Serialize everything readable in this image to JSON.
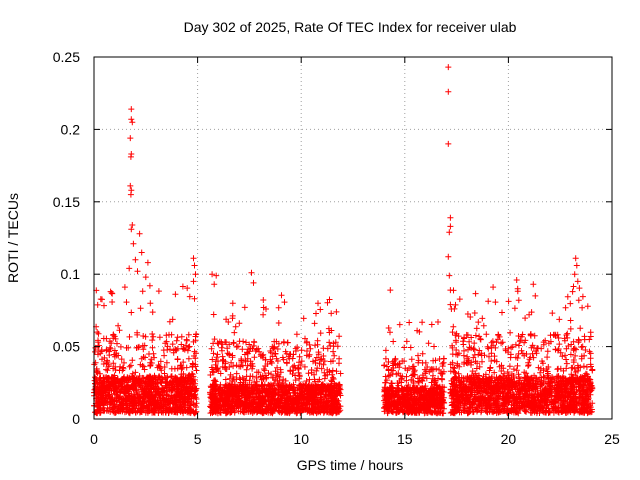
{
  "chart_data": {
    "type": "scatter",
    "title": "Day 302 of 2025, Rate Of TEC Index for receiver ulab",
    "xlabel": "GPS time / hours",
    "ylabel": "ROTI / TECUs",
    "xlim": [
      0,
      25
    ],
    "ylim": [
      0,
      0.25
    ],
    "x_ticks": [
      0,
      5,
      10,
      15,
      20,
      25
    ],
    "y_ticks": [
      0,
      0.05,
      0.1,
      0.15,
      0.2,
      0.25
    ],
    "x_tick_labels": [
      "0",
      "5",
      "10",
      "15",
      "20",
      "25"
    ],
    "y_tick_labels": [
      "0",
      "0.05",
      "0.1",
      "0.15",
      "0.2",
      "0.25"
    ],
    "grid": true,
    "marker": "plus",
    "color": "#ff0000",
    "outliers": [
      {
        "x": 1.8,
        "y": 0.214
      },
      {
        "x": 1.8,
        "y": 0.207
      },
      {
        "x": 1.85,
        "y": 0.205
      },
      {
        "x": 1.75,
        "y": 0.194
      },
      {
        "x": 1.8,
        "y": 0.183
      },
      {
        "x": 1.78,
        "y": 0.181
      },
      {
        "x": 1.75,
        "y": 0.161
      },
      {
        "x": 1.8,
        "y": 0.158
      },
      {
        "x": 1.78,
        "y": 0.155
      },
      {
        "x": 1.85,
        "y": 0.134
      },
      {
        "x": 1.8,
        "y": 0.131
      },
      {
        "x": 2.2,
        "y": 0.128
      },
      {
        "x": 1.9,
        "y": 0.121
      },
      {
        "x": 2.3,
        "y": 0.115
      },
      {
        "x": 2.0,
        "y": 0.11
      },
      {
        "x": 2.6,
        "y": 0.108
      },
      {
        "x": 1.7,
        "y": 0.104
      },
      {
        "x": 2.1,
        "y": 0.102
      },
      {
        "x": 2.5,
        "y": 0.098
      },
      {
        "x": 0.8,
        "y": 0.088
      },
      {
        "x": 0.85,
        "y": 0.087
      },
      {
        "x": 2.7,
        "y": 0.092
      },
      {
        "x": 4.8,
        "y": 0.111
      },
      {
        "x": 4.85,
        "y": 0.106
      },
      {
        "x": 4.9,
        "y": 0.1
      },
      {
        "x": 4.8,
        "y": 0.095
      },
      {
        "x": 4.85,
        "y": 0.083
      },
      {
        "x": 5.7,
        "y": 0.1
      },
      {
        "x": 5.9,
        "y": 0.099
      },
      {
        "x": 5.8,
        "y": 0.093
      },
      {
        "x": 7.6,
        "y": 0.101
      },
      {
        "x": 7.7,
        "y": 0.094
      },
      {
        "x": 6.7,
        "y": 0.08
      },
      {
        "x": 8.3,
        "y": 0.076
      },
      {
        "x": 14.3,
        "y": 0.089
      },
      {
        "x": 16.6,
        "y": 0.067
      },
      {
        "x": 17.1,
        "y": 0.243
      },
      {
        "x": 17.1,
        "y": 0.226
      },
      {
        "x": 17.1,
        "y": 0.19
      },
      {
        "x": 17.2,
        "y": 0.139
      },
      {
        "x": 17.2,
        "y": 0.133
      },
      {
        "x": 17.15,
        "y": 0.129
      },
      {
        "x": 17.1,
        "y": 0.112
      },
      {
        "x": 17.15,
        "y": 0.099
      },
      {
        "x": 17.2,
        "y": 0.089
      },
      {
        "x": 17.2,
        "y": 0.079
      },
      {
        "x": 17.25,
        "y": 0.076
      },
      {
        "x": 17.3,
        "y": 0.06
      },
      {
        "x": 20.4,
        "y": 0.096
      },
      {
        "x": 20.45,
        "y": 0.09
      },
      {
        "x": 20.5,
        "y": 0.082
      },
      {
        "x": 21.2,
        "y": 0.093
      },
      {
        "x": 21.3,
        "y": 0.085
      },
      {
        "x": 21.0,
        "y": 0.072
      },
      {
        "x": 23.25,
        "y": 0.111
      },
      {
        "x": 23.3,
        "y": 0.106
      },
      {
        "x": 23.2,
        "y": 0.1
      },
      {
        "x": 23.35,
        "y": 0.095
      },
      {
        "x": 23.1,
        "y": 0.088
      },
      {
        "x": 23.4,
        "y": 0.082
      },
      {
        "x": 23.0,
        "y": 0.068
      },
      {
        "x": 22.8,
        "y": 0.058
      }
    ],
    "activity_segments": [
      {
        "x0": 0.0,
        "x1": 4.95,
        "base": 0.025,
        "spread": 0.03
      },
      {
        "x0": 5.6,
        "x1": 11.9,
        "base": 0.02,
        "spread": 0.03
      },
      {
        "x0": 14.0,
        "x1": 16.9,
        "base": 0.018,
        "spread": 0.02
      },
      {
        "x0": 17.2,
        "x1": 24.05,
        "base": 0.025,
        "spread": 0.03
      }
    ]
  }
}
